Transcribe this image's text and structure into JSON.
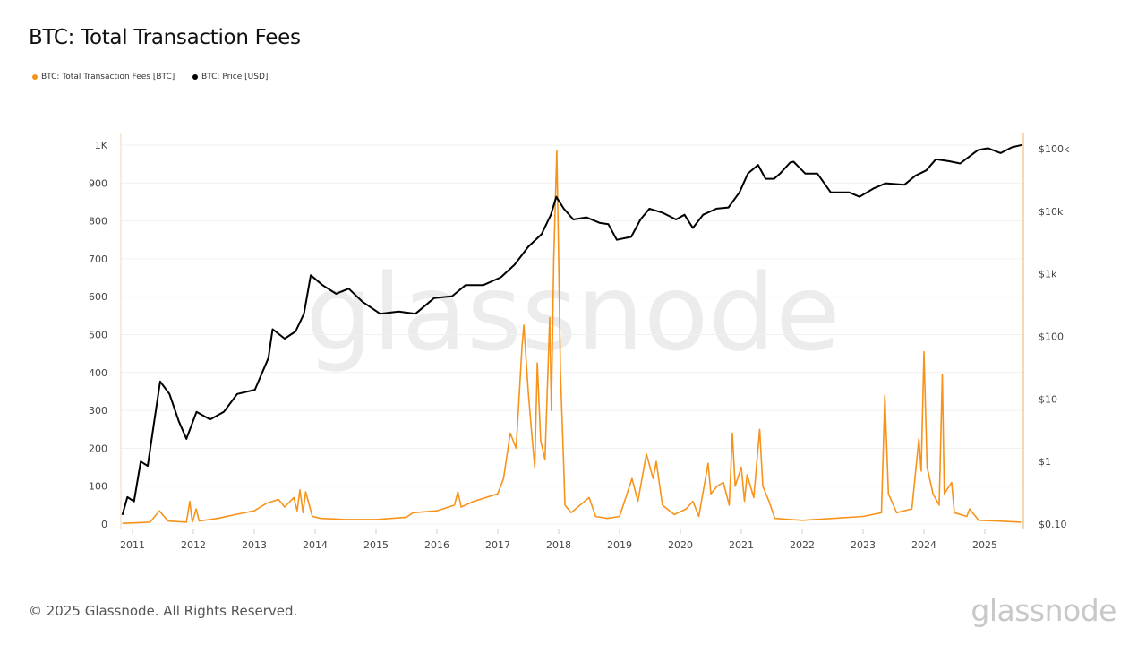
{
  "title": "BTC: Total Transaction Fees",
  "footer": "© 2025 Glassnode. All Rights Reserved.",
  "logo_text": "glassnode",
  "watermark": "glassnode",
  "legend": [
    {
      "label": "BTC: Total Transaction Fees [BTC]",
      "color": "#f7931a"
    },
    {
      "label": "BTC: Price [USD]",
      "color": "#000000"
    }
  ],
  "chart_data": {
    "type": "line",
    "title": "BTC: Total Transaction Fees",
    "grid": true,
    "legend_position": "top-left",
    "x_ticks": [
      "2011",
      "2012",
      "2013",
      "2014",
      "2015",
      "2016",
      "2017",
      "2018",
      "2019",
      "2020",
      "2021",
      "2022",
      "2023",
      "2024",
      "2025"
    ],
    "y_left": {
      "ticks": [
        "0",
        "100",
        "200",
        "300",
        "400",
        "500",
        "600",
        "700",
        "800",
        "900",
        "1K"
      ],
      "range": [
        0,
        1000
      ],
      "scale": "linear"
    },
    "y_right": {
      "ticks": [
        "$0.10",
        "$1",
        "$10",
        "$100",
        "$1k",
        "$10k",
        "$100k"
      ],
      "range": [
        0.1,
        100000
      ],
      "scale": "log"
    },
    "series": [
      {
        "name": "BTC: Total Transaction Fees [BTC]",
        "axis": "left",
        "color": "#f7931a",
        "points": [
          [
            "2010-11-01",
            2
          ],
          [
            "2011-04-15",
            5
          ],
          [
            "2011-06-10",
            35
          ],
          [
            "2011-08-01",
            8
          ],
          [
            "2011-11-20",
            5
          ],
          [
            "2011-12-10",
            60
          ],
          [
            "2011-12-25",
            5
          ],
          [
            "2012-01-18",
            40
          ],
          [
            "2012-02-05",
            8
          ],
          [
            "2012-05-25",
            15
          ],
          [
            "2012-09-10",
            25
          ],
          [
            "2013-01-01",
            35
          ],
          [
            "2013-03-15",
            55
          ],
          [
            "2013-05-25",
            65
          ],
          [
            "2013-07-01",
            45
          ],
          [
            "2013-08-25",
            70
          ],
          [
            "2013-09-15",
            35
          ],
          [
            "2013-10-01",
            90
          ],
          [
            "2013-10-20",
            30
          ],
          [
            "2013-11-05",
            85
          ],
          [
            "2013-12-15",
            20
          ],
          [
            "2014-02-05",
            15
          ],
          [
            "2014-07-01",
            12
          ],
          [
            "2015-01-01",
            12
          ],
          [
            "2015-07-01",
            18
          ],
          [
            "2015-08-10",
            30
          ],
          [
            "2016-01-01",
            35
          ],
          [
            "2016-04-15",
            50
          ],
          [
            "2016-05-05",
            85
          ],
          [
            "2016-05-25",
            45
          ],
          [
            "2016-08-10",
            60
          ],
          [
            "2017-01-01",
            80
          ],
          [
            "2017-02-05",
            120
          ],
          [
            "2017-03-15",
            240
          ],
          [
            "2017-04-20",
            200
          ],
          [
            "2017-05-25",
            470
          ],
          [
            "2017-06-05",
            525
          ],
          [
            "2017-07-01",
            350
          ],
          [
            "2017-07-20",
            250
          ],
          [
            "2017-08-10",
            150
          ],
          [
            "2017-08-25",
            425
          ],
          [
            "2017-09-15",
            220
          ],
          [
            "2017-10-10",
            170
          ],
          [
            "2017-11-08",
            545
          ],
          [
            "2017-11-18",
            300
          ],
          [
            "2017-12-02",
            700
          ],
          [
            "2017-12-20",
            985
          ],
          [
            "2018-01-01",
            700
          ],
          [
            "2018-01-12",
            400
          ],
          [
            "2018-01-30",
            170
          ],
          [
            "2018-02-08",
            50
          ],
          [
            "2018-03-15",
            30
          ],
          [
            "2018-07-01",
            70
          ],
          [
            "2018-08-10",
            20
          ],
          [
            "2018-10-20",
            15
          ],
          [
            "2019-01-01",
            20
          ],
          [
            "2019-03-15",
            120
          ],
          [
            "2019-04-20",
            60
          ],
          [
            "2019-06-10",
            185
          ],
          [
            "2019-07-20",
            120
          ],
          [
            "2019-08-08",
            165
          ],
          [
            "2019-09-15",
            50
          ],
          [
            "2019-11-25",
            25
          ],
          [
            "2020-02-05",
            40
          ],
          [
            "2020-03-15",
            60
          ],
          [
            "2020-04-20",
            20
          ],
          [
            "2020-06-15",
            160
          ],
          [
            "2020-07-01",
            80
          ],
          [
            "2020-08-08",
            100
          ],
          [
            "2020-09-15",
            110
          ],
          [
            "2020-10-20",
            50
          ],
          [
            "2020-11-08",
            240
          ],
          [
            "2020-11-25",
            100
          ],
          [
            "2021-01-01",
            150
          ],
          [
            "2021-01-20",
            60
          ],
          [
            "2021-02-05",
            130
          ],
          [
            "2021-03-15",
            70
          ],
          [
            "2021-04-20",
            250
          ],
          [
            "2021-05-08",
            100
          ],
          [
            "2021-06-15",
            60
          ],
          [
            "2021-07-20",
            15
          ],
          [
            "2022-01-01",
            10
          ],
          [
            "2022-07-01",
            15
          ],
          [
            "2023-01-01",
            20
          ],
          [
            "2023-04-20",
            30
          ],
          [
            "2023-05-10",
            340
          ],
          [
            "2023-06-01",
            80
          ],
          [
            "2023-07-20",
            30
          ],
          [
            "2023-10-20",
            40
          ],
          [
            "2023-12-01",
            225
          ],
          [
            "2023-12-15",
            140
          ],
          [
            "2024-01-01",
            455
          ],
          [
            "2024-01-20",
            150
          ],
          [
            "2024-02-25",
            80
          ],
          [
            "2024-04-01",
            50
          ],
          [
            "2024-04-20",
            395
          ],
          [
            "2024-05-01",
            80
          ],
          [
            "2024-06-15",
            110
          ],
          [
            "2024-07-01",
            30
          ],
          [
            "2024-09-15",
            20
          ],
          [
            "2024-10-01",
            40
          ],
          [
            "2024-11-25",
            10
          ],
          [
            "2025-03-15",
            8
          ],
          [
            "2025-08-05",
            5
          ]
        ]
      },
      {
        "name": "BTC: Price [USD]",
        "axis": "right",
        "color": "#000000",
        "points": [
          [
            "2010-11-01",
            0.14
          ],
          [
            "2010-12-01",
            0.27
          ],
          [
            "2011-01-10",
            0.23
          ],
          [
            "2011-02-20",
            1.0
          ],
          [
            "2011-04-01",
            0.85
          ],
          [
            "2011-05-10",
            4.4
          ],
          [
            "2011-06-15",
            19
          ],
          [
            "2011-08-10",
            12
          ],
          [
            "2011-10-05",
            4.4
          ],
          [
            "2011-11-20",
            2.3
          ],
          [
            "2012-01-20",
            6.2
          ],
          [
            "2012-04-10",
            4.7
          ],
          [
            "2012-07-01",
            6.2
          ],
          [
            "2012-09-20",
            12
          ],
          [
            "2013-01-05",
            14
          ],
          [
            "2013-03-25",
            45
          ],
          [
            "2013-04-20",
            130
          ],
          [
            "2013-07-01",
            92
          ],
          [
            "2013-09-05",
            120
          ],
          [
            "2013-10-25",
            230
          ],
          [
            "2013-12-05",
            950
          ],
          [
            "2014-02-15",
            660
          ],
          [
            "2014-05-05",
            480
          ],
          [
            "2014-07-20",
            580
          ],
          [
            "2014-10-10",
            360
          ],
          [
            "2015-01-25",
            230
          ],
          [
            "2015-05-15",
            250
          ],
          [
            "2015-08-25",
            230
          ],
          [
            "2015-12-15",
            410
          ],
          [
            "2016-04-01",
            440
          ],
          [
            "2016-06-20",
            660
          ],
          [
            "2016-10-05",
            660
          ],
          [
            "2017-01-20",
            880
          ],
          [
            "2017-04-10",
            1400
          ],
          [
            "2017-07-01",
            2700
          ],
          [
            "2017-09-20",
            4300
          ],
          [
            "2017-11-15",
            8800
          ],
          [
            "2017-12-17",
            17000
          ],
          [
            "2018-02-01",
            11000
          ],
          [
            "2018-03-28",
            7400
          ],
          [
            "2018-06-15",
            8000
          ],
          [
            "2018-09-05",
            6500
          ],
          [
            "2018-10-25",
            6200
          ],
          [
            "2018-12-15",
            3500
          ],
          [
            "2019-03-10",
            3900
          ],
          [
            "2019-05-05",
            7400
          ],
          [
            "2019-06-28",
            11000
          ],
          [
            "2019-09-15",
            9500
          ],
          [
            "2019-12-05",
            7400
          ],
          [
            "2020-01-25",
            8800
          ],
          [
            "2020-03-15",
            5400
          ],
          [
            "2020-05-15",
            8800
          ],
          [
            "2020-08-05",
            11000
          ],
          [
            "2020-10-15",
            11500
          ],
          [
            "2020-12-20",
            20000
          ],
          [
            "2021-02-10",
            40000
          ],
          [
            "2021-04-10",
            55000
          ],
          [
            "2021-05-25",
            33000
          ],
          [
            "2021-07-15",
            33000
          ],
          [
            "2021-08-20",
            40000
          ],
          [
            "2021-10-20",
            60000
          ],
          [
            "2021-11-10",
            62000
          ],
          [
            "2022-01-20",
            40000
          ],
          [
            "2022-04-01",
            40000
          ],
          [
            "2022-06-20",
            20000
          ],
          [
            "2022-10-10",
            20000
          ],
          [
            "2022-12-10",
            17000
          ],
          [
            "2023-03-01",
            23000
          ],
          [
            "2023-05-15",
            28000
          ],
          [
            "2023-09-05",
            26500
          ],
          [
            "2023-11-10",
            37000
          ],
          [
            "2024-01-15",
            45000
          ],
          [
            "2024-03-12",
            68000
          ],
          [
            "2024-06-01",
            63000
          ],
          [
            "2024-08-05",
            58000
          ],
          [
            "2024-11-20",
            95000
          ],
          [
            "2025-01-20",
            102000
          ],
          [
            "2025-04-05",
            85000
          ],
          [
            "2025-06-10",
            105000
          ],
          [
            "2025-08-10",
            115000
          ]
        ]
      }
    ]
  }
}
